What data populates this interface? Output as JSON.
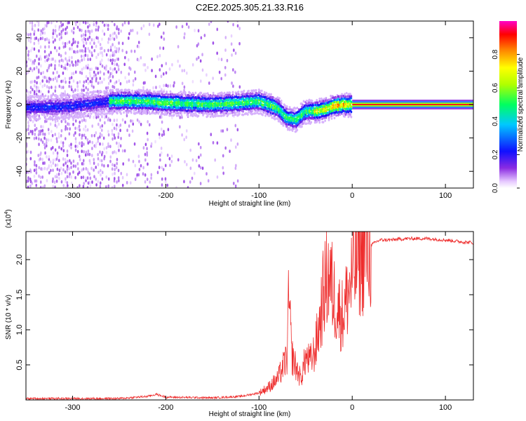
{
  "figure": {
    "title": "C2E2.2025.305.21.33.R16",
    "colors": {
      "signal_track": "#ff4a4a",
      "snr_line": "#ee2d2d",
      "scatter_main": "#6d0fe6",
      "scatter_faint": "#c9a5f5"
    }
  },
  "chart_data": [
    {
      "id": "spectrogram",
      "type": "heatmap",
      "title": "C2E2.2025.305.21.33.R16",
      "xlabel": "Height of straight line (km)",
      "ylabel": "Frequency (Hz)",
      "xlim": [
        -350,
        130
      ],
      "ylim": [
        -50,
        50
      ],
      "xticks": [
        -300,
        -200,
        -100,
        0,
        100
      ],
      "xtick_labels": [
        "-300",
        "-200",
        "-100",
        "0",
        "100"
      ],
      "yticks": [
        -40,
        -20,
        0,
        20,
        40
      ],
      "ytick_labels": [
        "-40",
        "-20",
        "0",
        "20",
        "40"
      ],
      "colorbar": {
        "label": "Normalized spectral amplitude",
        "range": [
          0,
          1
        ],
        "ticks": [
          0.0,
          0.2,
          0.4,
          0.6,
          0.8
        ],
        "tick_labels": [
          "0.0",
          "0.2",
          "0.4",
          "0.6",
          "0.8"
        ],
        "colormap": "rainbow (white-violet-blue-cyan-green-yellow-red-magenta)"
      },
      "ridge": {
        "description_points_x": [
          -350,
          -300,
          -260,
          -220,
          -200,
          -150,
          -120,
          -100,
          -80,
          -70,
          -60,
          -50,
          -40,
          -30,
          -20,
          -10,
          0,
          130
        ],
        "description_points_y": [
          -2,
          -1,
          2,
          2,
          1,
          0,
          1,
          2,
          -2,
          -8,
          -9,
          -4,
          -4,
          -3,
          -1,
          0,
          0,
          0
        ],
        "constant_amplitude_after_x0": 1.0
      }
    },
    {
      "id": "snr",
      "type": "line",
      "xlabel": "Height of straight line (km)",
      "ylabel": "SNR (10 * v/v)",
      "yscale_label": "(x10",
      "yscale_exponent": "4",
      "xlim": [
        -350,
        130
      ],
      "ylim": [
        0,
        2.4
      ],
      "xticks": [
        -300,
        -200,
        -100,
        0,
        100
      ],
      "xtick_labels": [
        "-300",
        "-200",
        "-100",
        "0",
        "100"
      ],
      "yticks": [
        0.5,
        1.0,
        1.5,
        2.0
      ],
      "ytick_labels": [
        "0.5",
        "1.0",
        "1.5",
        "2.0"
      ],
      "series": [
        {
          "x": [
            -350,
            -300,
            -250,
            -220,
            -210,
            -200,
            -150,
            -120,
            -100,
            -90,
            -80,
            -70,
            -68,
            -65,
            -60,
            -55,
            -50,
            -45,
            -40,
            -35,
            -30,
            -25,
            -20,
            -15,
            -10,
            -5,
            0,
            5,
            10,
            15,
            20,
            25,
            30,
            40,
            60,
            80,
            100,
            120,
            130
          ],
          "y": [
            0.02,
            0.02,
            0.02,
            0.05,
            0.08,
            0.04,
            0.03,
            0.05,
            0.1,
            0.18,
            0.3,
            0.6,
            1.45,
            0.65,
            0.45,
            0.3,
            0.6,
            0.55,
            0.7,
            1.1,
            1.6,
            1.8,
            1.5,
            1.3,
            1.2,
            1.5,
            1.75,
            2.0,
            2.1,
            2.15,
            2.2,
            2.25,
            2.28,
            2.28,
            2.3,
            2.3,
            2.28,
            2.25,
            2.24
          ]
        }
      ]
    }
  ]
}
